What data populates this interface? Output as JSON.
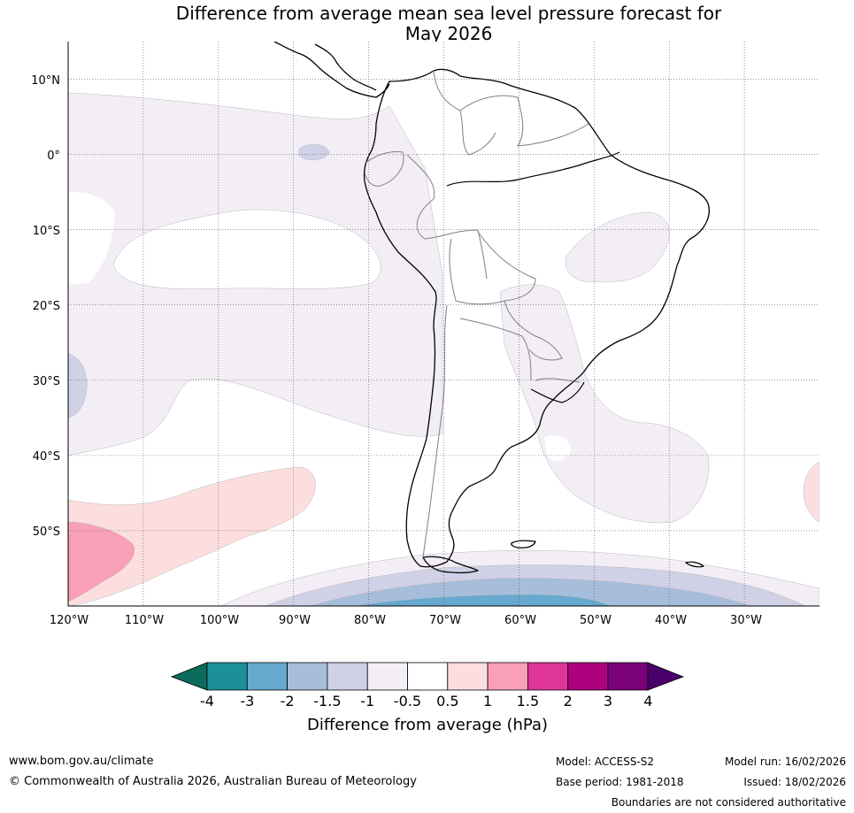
{
  "title": {
    "line1": "Difference from average mean sea level pressure forecast for",
    "line2": "May 2026"
  },
  "map": {
    "lat_labels": [
      "10°N",
      "0°",
      "10°S",
      "20°S",
      "30°S",
      "40°S",
      "50°S"
    ],
    "lon_labels": [
      "120°W",
      "110°W",
      "100°W",
      "90°W",
      "80°W",
      "70°W",
      "60°W",
      "50°W",
      "40°W",
      "30°W"
    ],
    "extent": {
      "lon_min": -120,
      "lon_max": -20,
      "lat_min": -60,
      "lat_max": 15
    },
    "colors": {
      "neg_1_0p5": "#f3eef6",
      "neg_1p5_1": "#d0d1e6",
      "neg_2_1p5": "#a6bddb",
      "neg_3_2": "#67a9cf",
      "pos_0p5_1": "#fddede",
      "pos_1_1p5": "#f9a0b8",
      "land_outline": "#000000",
      "borders": "#808080"
    }
  },
  "colorbar": {
    "ticks": [
      "-4",
      "-3",
      "-2",
      "-1.5",
      "-1",
      "-0.5",
      "0.5",
      "1",
      "1.5",
      "2",
      "3",
      "4"
    ],
    "colors": [
      "#1b9099",
      "#67a9cf",
      "#a6bddb",
      "#d0d1e6",
      "#f3eef6",
      "#ffffff",
      "#fddede",
      "#f9a0b8",
      "#e0369a",
      "#ae017e",
      "#7a0177"
    ],
    "extend_low_color": "#0d6b5c",
    "extend_high_color": "#49006a",
    "label": "Difference from average (hPa)"
  },
  "footer": {
    "website": "www.bom.gov.au/climate",
    "copyright": "© Commonwealth of Australia 2026, Australian Bureau of Meteorology",
    "model": "Model: ACCESS-S2",
    "base_period": "Base period: 1981-2018",
    "model_run": "Model run: 16/02/2026",
    "issued": "Issued: 18/02/2026",
    "disclaimer": "Boundaries are not considered authoritative"
  }
}
